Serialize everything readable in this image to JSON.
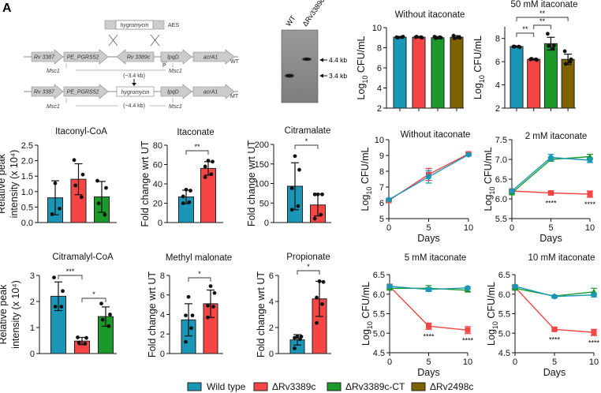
{
  "panel_label": "A",
  "diagram": {
    "cassette": "hygromycin",
    "aes": "AES",
    "genes": [
      "Rv 3387",
      "PE_PGRS52",
      "Rv 3389c",
      "lpqD",
      "acrA1"
    ],
    "wt_label": "WT",
    "mt_label": "MT",
    "msc": "Msc1",
    "promoter": "P",
    "wt_size": "(~3.4 kb)",
    "mt_size": "(~4.4 kb)",
    "mt_insert": "hygromycin"
  },
  "gel": {
    "lanes": [
      "WT",
      "ΔRv3389c"
    ],
    "markers": [
      "4.4 kb",
      "3.4 kb"
    ]
  },
  "groups": [
    {
      "name": "Wild type",
      "color": "#1a97b6",
      "marker": "circle"
    },
    {
      "name": "ΔRv3389c",
      "color": "#f54545",
      "marker": "square"
    },
    {
      "name": "ΔRv3389c-CT",
      "color": "#1b9a2b",
      "marker": "triangle"
    },
    {
      "name": "ΔRv2498c",
      "color": "#7f6200",
      "marker": "square"
    }
  ],
  "chart_data": [
    {
      "id": "cfu_no_itaconate",
      "type": "bar",
      "title": "Without itaconate",
      "ylabel": [
        "Log",
        "10",
        " CFU/mL"
      ],
      "ylim": [
        2,
        10
      ],
      "yticks": [
        "2",
        "4",
        "6",
        "8",
        "10"
      ],
      "bars": [
        {
          "group": 0,
          "mean": 9.05,
          "sd": 0.08,
          "points": [
            9.05,
            9.1,
            9.0,
            9.05
          ]
        },
        {
          "group": 1,
          "mean": 9.05,
          "sd": 0.07,
          "points": [
            9.05,
            9.0,
            9.1,
            9.05
          ]
        },
        {
          "group": 2,
          "mean": 9.0,
          "sd": 0.12,
          "points": [
            9.1,
            9.0,
            8.95,
            9.05
          ]
        },
        {
          "group": 3,
          "mean": 9.05,
          "sd": 0.15,
          "points": [
            9.2,
            9.0,
            8.95,
            9.05
          ]
        }
      ],
      "significance": []
    },
    {
      "id": "cfu_50mm",
      "type": "bar",
      "title": "50 mM itaconate",
      "ylabel": [
        "Log",
        "10",
        " CFU/mL"
      ],
      "ylim": [
        2,
        9
      ],
      "yticks": [
        "2",
        "4",
        "6",
        "8"
      ],
      "bars": [
        {
          "group": 0,
          "mean": 7.3,
          "sd": 0.06,
          "points": [
            7.3,
            7.25,
            7.3,
            7.3
          ]
        },
        {
          "group": 1,
          "mean": 6.2,
          "sd": 0.06,
          "points": [
            6.2,
            6.15,
            6.25,
            6.2
          ]
        },
        {
          "group": 2,
          "mean": 7.55,
          "sd": 0.55,
          "points": [
            8.4,
            7.4,
            7.35,
            7.1
          ]
        },
        {
          "group": 3,
          "mean": 6.2,
          "sd": 0.45,
          "points": [
            6.9,
            6.2,
            5.8,
            6.0
          ]
        }
      ],
      "significance": [
        {
          "from": 0,
          "to": 1,
          "label": "**"
        },
        {
          "from": 1,
          "to": 2,
          "label": "**"
        },
        {
          "from": 0,
          "to": 3,
          "label": "**"
        }
      ]
    },
    {
      "id": "itaconyl_coa",
      "type": "bar",
      "title": "Itaconyl-CoA",
      "ylabel": [
        "Relative peak",
        "intensity (x 10⁴)"
      ],
      "ylim": [
        0,
        2.5
      ],
      "yticks": [
        "0.0",
        "0.5",
        "1.0",
        "1.5",
        "2.0",
        "2.5"
      ],
      "bars": [
        {
          "group": 0,
          "mean": 0.8,
          "sd": 0.55,
          "points": [
            1.27,
            0.45,
            0.27
          ]
        },
        {
          "group": 1,
          "mean": 1.4,
          "sd": 0.5,
          "points": [
            2.02,
            1.55,
            1.2,
            0.82
          ]
        },
        {
          "group": 2,
          "mean": 0.83,
          "sd": 0.5,
          "points": [
            1.35,
            1.12,
            0.62,
            0.25
          ]
        }
      ],
      "significance": []
    },
    {
      "id": "itaconate",
      "type": "bar",
      "title": "Itaconate",
      "ylabel": [
        "Fold change wrt UT"
      ],
      "ylim": [
        0,
        80
      ],
      "yticks": [
        "0",
        "20",
        "40",
        "60",
        "80"
      ],
      "bars": [
        {
          "group": 0,
          "mean": 26.5,
          "sd": 7,
          "points": [
            34,
            33,
            27,
            21,
            20
          ]
        },
        {
          "group": 1,
          "mean": 56,
          "sd": 7,
          "points": [
            64,
            63,
            58,
            50,
            47
          ]
        }
      ],
      "significance": [
        {
          "from": 0,
          "to": 1,
          "label": "**"
        }
      ]
    },
    {
      "id": "citramalate",
      "type": "bar",
      "title": "Citramalate",
      "ylabel": [
        "Fold change wrt UT"
      ],
      "ylim": [
        0,
        200
      ],
      "yticks": [
        "0",
        "50",
        "100",
        "150",
        "200"
      ],
      "bars": [
        {
          "group": 0,
          "mean": 93,
          "sd": 60,
          "points": [
            170,
            135,
            88,
            42,
            33
          ]
        },
        {
          "group": 1,
          "mean": 45,
          "sd": 28,
          "points": [
            72,
            72,
            72,
            20,
            10
          ]
        }
      ],
      "significance": [
        {
          "from": 0,
          "to": 1,
          "label": "*"
        }
      ]
    },
    {
      "id": "citramalyl_coa",
      "type": "bar",
      "title": "Citramalyl-CoA",
      "ylabel": [
        "Relative peak",
        "intensity (x 10⁴)"
      ],
      "ylim": [
        0,
        3
      ],
      "yticks": [
        "0",
        "1",
        "2",
        "3"
      ],
      "bars": [
        {
          "group": 0,
          "mean": 2.2,
          "sd": 0.55,
          "points": [
            2.92,
            2.4,
            1.8,
            1.8
          ]
        },
        {
          "group": 1,
          "mean": 0.48,
          "sd": 0.14,
          "points": [
            0.62,
            0.6,
            0.42,
            0.38
          ]
        },
        {
          "group": 2,
          "mean": 1.42,
          "sd": 0.37,
          "points": [
            1.92,
            1.5,
            1.3,
            1.05
          ]
        }
      ],
      "significance": [
        {
          "from": 0,
          "to": 1,
          "label": "***"
        },
        {
          "from": 1,
          "to": 2,
          "label": "*"
        }
      ]
    },
    {
      "id": "methyl_malonate",
      "type": "bar",
      "title": "Methyl malonate",
      "ylabel": [
        "Fold change wrt UT"
      ],
      "ylim": [
        0,
        8
      ],
      "yticks": [
        "0",
        "2",
        "4",
        "6",
        "8"
      ],
      "bars": [
        {
          "group": 0,
          "mean": 3.45,
          "sd": 1.65,
          "points": [
            5.8,
            3.9,
            3.9,
            2.6,
            1.2
          ]
        },
        {
          "group": 1,
          "mean": 5.1,
          "sd": 1.4,
          "points": [
            6.9,
            6.2,
            4.9,
            4.8,
            3.7
          ]
        }
      ],
      "significance": [
        {
          "from": 0,
          "to": 1,
          "label": "*"
        }
      ]
    },
    {
      "id": "propionate",
      "type": "bar",
      "title": "Propionate",
      "ylabel": [
        "Fold change wrt UT"
      ],
      "ylim": [
        0,
        6
      ],
      "yticks": [
        "0",
        "2",
        "4",
        "6"
      ],
      "bars": [
        {
          "group": 0,
          "mean": 1.05,
          "sd": 0.4,
          "points": [
            1.3,
            1.3,
            1.2,
            1.1,
            0.4
          ]
        },
        {
          "group": 1,
          "mean": 4.2,
          "sd": 1.35,
          "points": [
            5.55,
            5.5,
            4.3,
            3.8,
            2.35
          ]
        }
      ],
      "significance": [
        {
          "from": 0,
          "to": 1,
          "label": "*"
        }
      ]
    },
    {
      "id": "growth_no_itaconate",
      "type": "line",
      "title": "Without itaconate",
      "xlabel": "Days",
      "ylabel": [
        "Log",
        "10",
        " CFU/mL"
      ],
      "x": [
        0,
        5,
        10
      ],
      "xticks": [
        "0",
        "5",
        "10"
      ],
      "xlim": [
        0,
        10
      ],
      "ylim": [
        5,
        10
      ],
      "yticks": [
        "5",
        "6",
        "7",
        "8",
        "9",
        "10"
      ],
      "series": [
        {
          "group": 1,
          "y": [
            6.15,
            7.8,
            9.1
          ],
          "err": [
            0.05,
            0.38,
            0.08
          ]
        },
        {
          "group": 0,
          "y": [
            6.2,
            7.65,
            9.05
          ],
          "err": [
            0.05,
            0.4,
            0.05
          ]
        }
      ],
      "annotations": []
    },
    {
      "id": "growth_2mm",
      "type": "line",
      "title": "2 mM itaconate",
      "xlabel": "Days",
      "ylabel": [
        "Log",
        "10",
        " CFU/mL"
      ],
      "x": [
        0,
        5,
        10
      ],
      "xticks": [
        "0",
        "5",
        "10"
      ],
      "xlim": [
        0,
        10
      ],
      "ylim": [
        5.5,
        7.5
      ],
      "yticks": [
        "5.5",
        "6.0",
        "6.5",
        "7.0",
        "7.5"
      ],
      "series": [
        {
          "group": 1,
          "y": [
            6.2,
            6.15,
            6.12
          ],
          "err": [
            0.02,
            0.03,
            0.08
          ]
        },
        {
          "group": 2,
          "y": [
            6.15,
            7.0,
            7.07
          ],
          "err": [
            0.02,
            0.04,
            0.06
          ]
        },
        {
          "group": 0,
          "y": [
            6.2,
            7.05,
            6.98
          ],
          "err": [
            0.03,
            0.08,
            0.06
          ]
        }
      ],
      "annotations": [
        {
          "x": 5,
          "label": "****"
        },
        {
          "x": 10,
          "label": "****"
        }
      ]
    },
    {
      "id": "growth_5mm",
      "type": "line",
      "title": "5 mM itaconate",
      "xlabel": "Days",
      "ylabel": [
        "Log",
        "10",
        " CFU/mL"
      ],
      "x": [
        0,
        5,
        10
      ],
      "xticks": [
        "0",
        "5",
        "10"
      ],
      "xlim": [
        0,
        10
      ],
      "ylim": [
        4.5,
        6.5
      ],
      "yticks": [
        "4.5",
        "5.0",
        "5.5",
        "6.0",
        "6.5"
      ],
      "series": [
        {
          "group": 1,
          "y": [
            6.2,
            5.18,
            5.08
          ],
          "err": [
            0.03,
            0.08,
            0.09
          ]
        },
        {
          "group": 2,
          "y": [
            6.15,
            6.15,
            6.1
          ],
          "err": [
            0.02,
            0.07,
            0.03
          ]
        },
        {
          "group": 0,
          "y": [
            6.2,
            6.12,
            6.16
          ],
          "err": [
            0.03,
            0.05,
            0.03
          ]
        }
      ],
      "annotations": [
        {
          "x": 5,
          "label": "****"
        },
        {
          "x": 10,
          "label": "****"
        }
      ]
    },
    {
      "id": "growth_10mm",
      "type": "line",
      "title": "10 mM itaconate",
      "xlabel": "Days",
      "ylabel": [
        "Log",
        "10",
        " CFU/mL"
      ],
      "x": [
        0,
        5,
        10
      ],
      "xticks": [
        "0",
        "5",
        "10"
      ],
      "xlim": [
        0,
        10
      ],
      "ylim": [
        4.5,
        6.5
      ],
      "yticks": [
        "4.5",
        "5.0",
        "5.5",
        "6.0",
        "6.5"
      ],
      "series": [
        {
          "group": 1,
          "y": [
            6.18,
            5.1,
            5.02
          ],
          "err": [
            0.03,
            0.04,
            0.08
          ]
        },
        {
          "group": 2,
          "y": [
            6.15,
            5.95,
            6.06
          ],
          "err": [
            0.02,
            0.02,
            0.09
          ]
        },
        {
          "group": 0,
          "y": [
            6.2,
            5.94,
            5.98
          ],
          "err": [
            0.03,
            0.02,
            0.05
          ]
        }
      ],
      "annotations": [
        {
          "x": 5,
          "label": "****"
        },
        {
          "x": 10,
          "label": "****"
        }
      ]
    }
  ]
}
